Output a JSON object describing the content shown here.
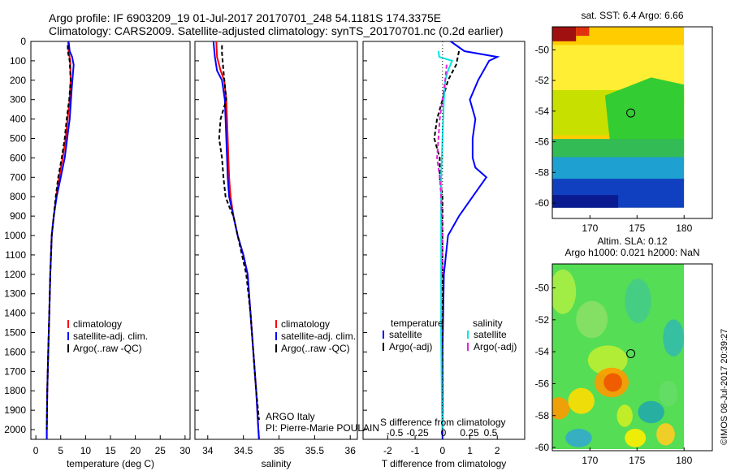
{
  "header": {
    "title_line1": "Argo profile: IF 6903209_19 01-Jul-2017 20170701_248 54.1181S 174.3375E",
    "title_line2": "Climatology: CARS2009. Satellite-adjusted climatology: synTS_20170701.nc (0.2d earlier)"
  },
  "credit": "©IMOS 08-Jul-2017 20:39:27",
  "colors": {
    "climatology": "#ff0000",
    "satellite": "#0000ff",
    "argo": "#000000",
    "sal_satellite": "#00e5e5",
    "sal_argo": "#e020e0"
  },
  "chart_data": [
    {
      "type": "line",
      "name": "temperature",
      "xlabel": "temperature (deg C)",
      "ylabel": "",
      "xlim": [
        -1,
        31
      ],
      "ylim": [
        2050,
        0
      ],
      "xticks": [
        "0",
        "5",
        "10",
        "15",
        "20",
        "25",
        "30"
      ],
      "yticks": [
        "0",
        "100",
        "200",
        "300",
        "400",
        "500",
        "600",
        "700",
        "800",
        "900",
        "1000",
        "1100",
        "1200",
        "1300",
        "1400",
        "1500",
        "1600",
        "1700",
        "1800",
        "1900",
        "2000"
      ],
      "grid": false,
      "legend": "lower-right",
      "legend_entries": [
        "climatology",
        "satellite-adj. clim.",
        "Argo(..raw -QC)"
      ],
      "series": [
        {
          "name": "climatology",
          "color": "#ff0000",
          "dash": "",
          "x": [
            6.5,
            6.6,
            6.9,
            7.0,
            6.8,
            6.4,
            6.0,
            5.4,
            4.7,
            4.1,
            3.6,
            3.2,
            2.9,
            2.7,
            2.5,
            2.3,
            2.2,
            2.2
          ],
          "y": [
            0,
            50,
            100,
            200,
            300,
            400,
            500,
            600,
            700,
            800,
            900,
            1000,
            1200,
            1400,
            1600,
            1800,
            2000,
            2050
          ]
        },
        {
          "name": "satellite-adj. clim.",
          "color": "#0000ff",
          "dash": "",
          "x": [
            6.6,
            6.8,
            7.3,
            7.6,
            7.2,
            6.8,
            6.3,
            5.8,
            5.0,
            4.2,
            3.6,
            3.2,
            2.9,
            2.7,
            2.5,
            2.3,
            2.2,
            2.2
          ],
          "y": [
            0,
            50,
            80,
            120,
            250,
            400,
            500,
            600,
            700,
            800,
            900,
            1000,
            1200,
            1400,
            1600,
            1800,
            2000,
            2050
          ]
        },
        {
          "name": "Argo(..raw -QC)",
          "color": "#000000",
          "dash": "5,3",
          "x": [
            6.4,
            6.5,
            6.8,
            7.0,
            6.7,
            6.2,
            5.8,
            5.2,
            4.5,
            4.0,
            3.6,
            3.2,
            2.9,
            2.7,
            2.5,
            2.3,
            2.2
          ],
          "y": [
            20,
            60,
            100,
            200,
            300,
            400,
            500,
            600,
            700,
            800,
            900,
            1000,
            1200,
            1400,
            1600,
            1800,
            2000
          ]
        }
      ]
    },
    {
      "type": "line",
      "name": "salinity",
      "xlabel": "salinity",
      "ylabel": "",
      "xlim": [
        33.82,
        36.1
      ],
      "ylim": [
        2050,
        0
      ],
      "xticks": [
        "34",
        "34.5",
        "35",
        "35.5",
        "36"
      ],
      "grid": false,
      "legend": "lower-right",
      "legend_entries": [
        "climatology",
        "satellite-adj. clim.",
        "Argo(..raw -QC)"
      ],
      "annotation": [
        "ARGO Italy",
        "PI: Pierre-Marie POULAIN"
      ],
      "series": [
        {
          "name": "climatology",
          "color": "#ff0000",
          "dash": "",
          "x": [
            34.12,
            34.13,
            34.18,
            34.23,
            34.26,
            34.27,
            34.28,
            34.29,
            34.3,
            34.32,
            34.36,
            34.42,
            34.5,
            34.56,
            34.6,
            34.64,
            34.68,
            34.71,
            34.72
          ],
          "y": [
            0,
            80,
            150,
            200,
            300,
            400,
            500,
            600,
            700,
            800,
            900,
            1000,
            1100,
            1200,
            1400,
            1600,
            1800,
            2000,
            2050
          ]
        },
        {
          "name": "satellite-adj. clim.",
          "color": "#0000ff",
          "dash": "",
          "x": [
            34.08,
            34.1,
            34.13,
            34.2,
            34.24,
            34.25,
            34.26,
            34.27,
            34.28,
            34.3,
            34.36,
            34.42,
            34.5,
            34.56,
            34.6,
            34.64,
            34.68,
            34.71,
            34.72
          ],
          "y": [
            0,
            80,
            150,
            200,
            300,
            400,
            500,
            600,
            700,
            800,
            900,
            1000,
            1100,
            1200,
            1400,
            1600,
            1800,
            2000,
            2050
          ]
        },
        {
          "name": "Argo(..raw -QC)",
          "color": "#000000",
          "dash": "5,3",
          "x": [
            34.2,
            34.2,
            34.22,
            34.26,
            34.18,
            34.16,
            34.2,
            34.22,
            34.25,
            34.3,
            34.36,
            34.42,
            34.48,
            34.54,
            34.6,
            34.64,
            34.68,
            34.72
          ],
          "y": [
            20,
            60,
            150,
            300,
            400,
            500,
            600,
            700,
            800,
            850,
            900,
            1000,
            1100,
            1200,
            1400,
            1600,
            1800,
            1950
          ]
        }
      ]
    },
    {
      "type": "line",
      "name": "difference",
      "xlabel": "T difference from climatology",
      "xlabel_top": "S difference from climatology",
      "xlim": [
        -2.9,
        3.0
      ],
      "ylim": [
        2050,
        0
      ],
      "xticks": [
        "-2",
        "-1",
        "0",
        "1",
        "2"
      ],
      "xticks_top": [
        "-0.5",
        "-0.25",
        "0",
        "0.25",
        "0.5"
      ],
      "grid": false,
      "legend": "lower",
      "legend_titles": [
        "temperature",
        "salinity"
      ],
      "legend_entries": [
        "satellite",
        "Argo(-adj)",
        "satellite",
        "Argo(-adj)"
      ],
      "series": [
        {
          "name": "temperature satellite",
          "color": "#0000ff",
          "dash": "",
          "x": [
            0.3,
            0.8,
            2.0,
            1.7,
            1.3,
            1.0,
            1.2,
            1.1,
            1.1,
            1.2,
            1.6,
            1.1,
            0.6,
            0.2,
            0.05,
            0.0,
            0.0,
            0.0
          ],
          "y": [
            0,
            50,
            80,
            100,
            200,
            300,
            400,
            500,
            600,
            650,
            700,
            800,
            900,
            1000,
            1200,
            1600,
            2000,
            2050
          ]
        },
        {
          "name": "temperature Argo(-adj)",
          "color": "#000000",
          "dash": "5,3",
          "x": [
            0.6,
            0.5,
            0.2,
            0.0,
            -0.2,
            -0.3,
            -0.1,
            -0.1,
            0.0,
            0.0,
            0.0
          ],
          "y": [
            50,
            120,
            200,
            300,
            400,
            500,
            600,
            700,
            800,
            1200,
            2000
          ]
        },
        {
          "name": "salinity satellite",
          "color": "#00e5e5",
          "dash": "",
          "x": [
            -0.15,
            -0.12,
            0.35,
            0.2,
            0.1,
            0.05,
            0.0,
            -0.05,
            -0.05,
            -0.05,
            -0.02,
            0.0
          ],
          "y": [
            50,
            80,
            100,
            150,
            200,
            300,
            500,
            700,
            1000,
            1500,
            1900,
            2000
          ]
        },
        {
          "name": "salinity Argo(-adj)",
          "color": "#e020e0",
          "dash": "5,3",
          "x": [
            0.15,
            0.1,
            0.0,
            -0.1,
            -0.15,
            -0.2,
            -0.1,
            -0.05,
            0.0,
            0.0
          ],
          "y": [
            120,
            200,
            300,
            400,
            500,
            600,
            700,
            800,
            1000,
            1200
          ]
        }
      ]
    },
    {
      "type": "heatmap",
      "name": "sst",
      "title": "sat. SST: 6.4 Argo: 6.66",
      "xlim": [
        166,
        183
      ],
      "ylim": [
        -61,
        -48.5
      ],
      "xticks": [
        "170",
        "175",
        "180"
      ],
      "yticks": [
        "-50",
        "-52",
        "-54",
        "-56",
        "-58",
        "-60"
      ],
      "marker": {
        "lon": 174.3375,
        "lat": -54.1181
      }
    },
    {
      "type": "heatmap",
      "name": "sla",
      "title_line1": "Altim. SLA: 0.12",
      "title_line2": "Argo h1000: 0.021 h2000: NaN",
      "xlim": [
        166,
        183
      ],
      "ylim": [
        -60.2,
        -48.5
      ],
      "xticks": [
        "170",
        "175",
        "180"
      ],
      "yticks": [
        "-50",
        "-52",
        "-54",
        "-56",
        "-58",
        "-60"
      ],
      "marker": {
        "lon": 174.3375,
        "lat": -54.1181
      }
    }
  ]
}
